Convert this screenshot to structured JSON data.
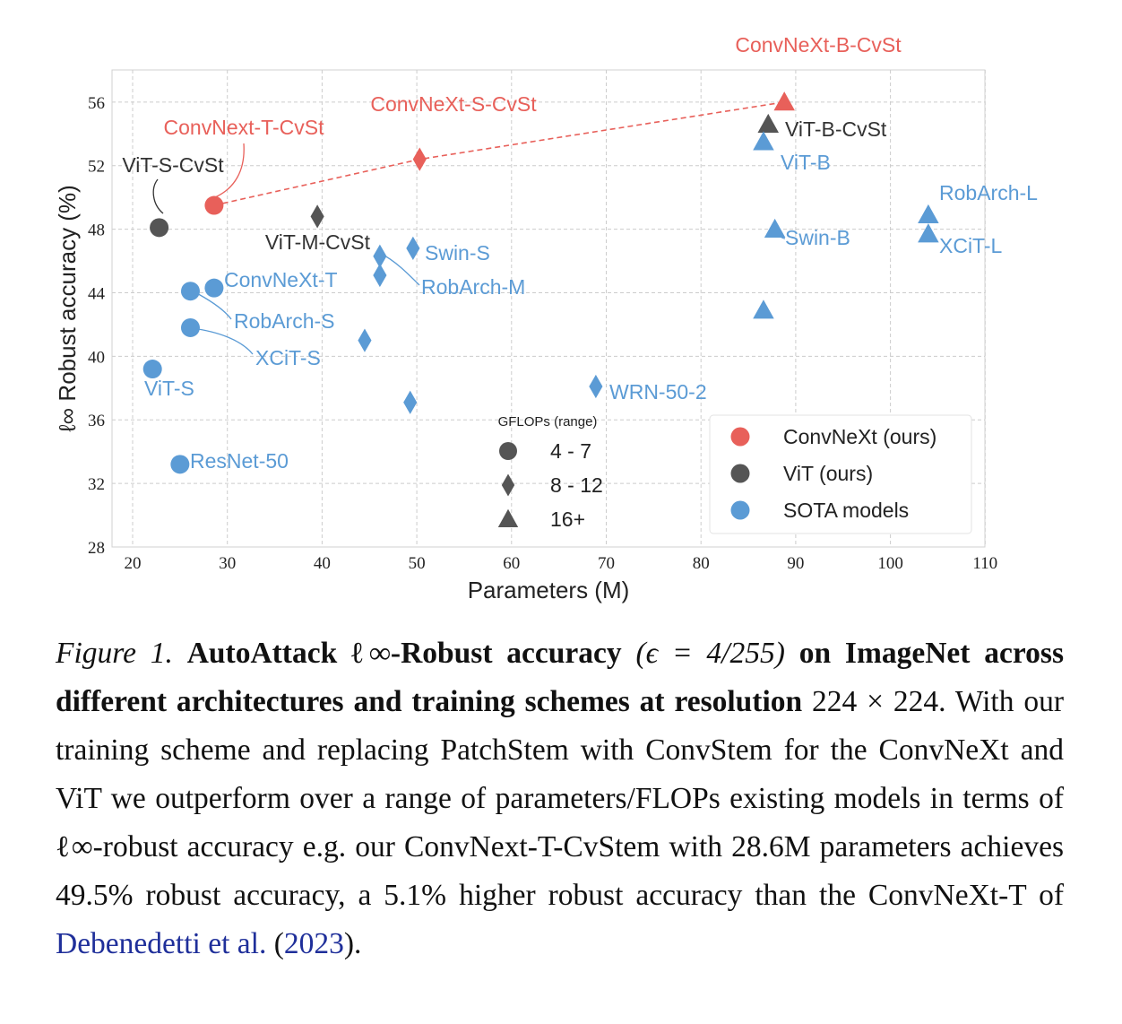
{
  "chart_data": {
    "type": "scatter",
    "xlabel": "Parameters (M)",
    "ylabel": "ℓ∞ Robust accuracy (%)",
    "xlim": [
      18,
      110
    ],
    "ylim": [
      28,
      58
    ],
    "xticks": [
      20,
      30,
      40,
      50,
      60,
      70,
      80,
      90,
      100,
      110
    ],
    "yticks": [
      28,
      32,
      36,
      40,
      44,
      48,
      52,
      56
    ],
    "grid": true,
    "colors": {
      "ConvNeXt": "#e8605a",
      "ViT": "#555555",
      "SOTA": "#5b9bd5"
    },
    "points": [
      {
        "label": "ConvNext-T-CvSt",
        "x": 28.6,
        "y": 49.5,
        "group": "ConvNeXt",
        "marker": "circle"
      },
      {
        "label": "ConvNeXt-S-CvSt",
        "x": 50.3,
        "y": 52.4,
        "group": "ConvNeXt",
        "marker": "diamond"
      },
      {
        "label": "ConvNeXt-B-CvSt",
        "x": 88.8,
        "y": 56.0,
        "group": "ConvNeXt",
        "marker": "triangle"
      },
      {
        "label": "ViT-S-CvSt",
        "x": 22.8,
        "y": 48.1,
        "group": "ViT",
        "marker": "circle"
      },
      {
        "label": "ViT-M-CvSt",
        "x": 39.5,
        "y": 48.8,
        "group": "ViT",
        "marker": "diamond"
      },
      {
        "label": "ViT-B-CvSt",
        "x": 87.1,
        "y": 54.6,
        "group": "ViT",
        "marker": "triangle"
      },
      {
        "label": "ViT-B",
        "x": 86.6,
        "y": 53.5,
        "group": "SOTA",
        "marker": "triangle"
      },
      {
        "label": "RobArch-L",
        "x": 104.0,
        "y": 48.9,
        "group": "SOTA",
        "marker": "triangle"
      },
      {
        "label": "XCiT-L",
        "x": 104.0,
        "y": 47.7,
        "group": "SOTA",
        "marker": "triangle"
      },
      {
        "label": "Swin-B",
        "x": 87.8,
        "y": 48.0,
        "group": "SOTA",
        "marker": "triangle"
      },
      {
        "label": "",
        "x": 86.6,
        "y": 42.9,
        "group": "SOTA",
        "marker": "triangle"
      },
      {
        "label": "Swin-S",
        "x": 49.6,
        "y": 46.8,
        "group": "SOTA",
        "marker": "diamond"
      },
      {
        "label": "RobArch-M",
        "x": 46.1,
        "y": 46.3,
        "group": "SOTA",
        "marker": "diamond"
      },
      {
        "label": "",
        "x": 46.1,
        "y": 45.1,
        "group": "SOTA",
        "marker": "diamond"
      },
      {
        "label": "",
        "x": 44.5,
        "y": 41.0,
        "group": "SOTA",
        "marker": "diamond"
      },
      {
        "label": "",
        "x": 49.3,
        "y": 37.1,
        "group": "SOTA",
        "marker": "diamond"
      },
      {
        "label": "WRN-50-2",
        "x": 68.9,
        "y": 38.1,
        "group": "SOTA",
        "marker": "diamond"
      },
      {
        "label": "ConvNeXt-T",
        "x": 28.6,
        "y": 44.3,
        "group": "SOTA",
        "marker": "circle"
      },
      {
        "label": "RobArch-S",
        "x": 26.1,
        "y": 44.1,
        "group": "SOTA",
        "marker": "circle"
      },
      {
        "label": "XCiT-S",
        "x": 26.1,
        "y": 41.8,
        "group": "SOTA",
        "marker": "circle"
      },
      {
        "label": "ViT-S",
        "x": 22.1,
        "y": 39.2,
        "group": "SOTA",
        "marker": "circle"
      },
      {
        "label": "ResNet-50",
        "x": 25.0,
        "y": 33.2,
        "group": "SOTA",
        "marker": "circle"
      }
    ],
    "dashed_line": {
      "x": [
        28.6,
        50.3,
        88.8
      ],
      "y": [
        49.5,
        52.4,
        56.0
      ],
      "color": "#e8605a"
    },
    "legend_shape": {
      "title": "GFLOPs (range)",
      "entries": [
        {
          "marker": "circle",
          "label": "4 - 7"
        },
        {
          "marker": "diamond",
          "label": "8 - 12"
        },
        {
          "marker": "triangle",
          "label": "16+"
        }
      ]
    },
    "legend_color": [
      {
        "group": "ConvNeXt",
        "label": "ConvNeXt (ours)"
      },
      {
        "group": "ViT",
        "label": "ViT (ours)"
      },
      {
        "group": "SOTA",
        "label": "SOTA models"
      }
    ]
  },
  "caption": {
    "lead": "Figure 1.",
    "bold1": "AutoAttack ℓ∞-Robust accuracy",
    "eps": "(ϵ = 4/255)",
    "bold2": "on ImageNet across different architectures and training schemes at resolution",
    "res": "224 × 224.",
    "body": "With our training scheme and replacing PatchStem with ConvStem for the ConvNeXt and ViT we outperform over a range of parameters/FLOPs existing models in terms of ℓ∞-robust accuracy e.g. our ConvNext-T-CvStem with 28.6M parameters achieves 49.5% robust accuracy, a 5.1% higher robust accuracy than the ConvNeXt-T of",
    "cite_authors": "Debenedetti et al.",
    "cite_open": "(",
    "cite_year": "2023",
    "cite_close": ")."
  }
}
